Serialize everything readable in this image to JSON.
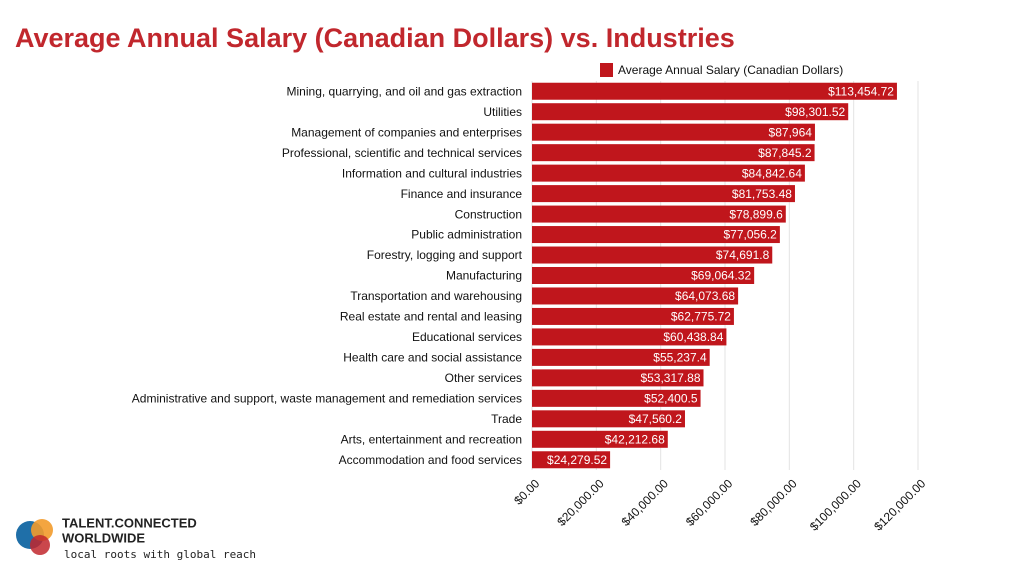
{
  "chart_data": {
    "type": "bar",
    "orientation": "horizontal",
    "title": "Average Annual Salary (Canadian Dollars) vs. Industries",
    "categories": [
      "Mining, quarrying, and oil and gas extraction",
      "Utilities",
      "Management of companies and enterprises",
      "Professional, scientific and technical services",
      "Information and cultural industries",
      "Finance and insurance",
      "Construction",
      "Public administration",
      "Forestry, logging and support",
      "Manufacturing",
      "Transportation and warehousing",
      "Real estate and rental and leasing",
      "Educational services",
      "Health care and social assistance",
      "Other services",
      "Administrative and support, waste management and remediation services",
      "Trade",
      "Arts, entertainment and recreation",
      "Accommodation and food services"
    ],
    "series": [
      {
        "name": "Average Annual Salary (Canadian Dollars)",
        "color": "#c0161c",
        "values": [
          113454.72,
          98301.52,
          87964,
          87845.2,
          84842.64,
          81753.48,
          78899.6,
          77056.2,
          74691.8,
          69064.32,
          64073.68,
          62775.72,
          60438.84,
          55237.4,
          53317.88,
          52400.5,
          47560.2,
          42212.68,
          24279.52
        ],
        "value_labels": [
          "$113,454.72",
          "$98,301.52",
          "$87,964",
          "$87,845.2",
          "$84,842.64",
          "$81,753.48",
          "$78,899.6",
          "$77,056.2",
          "$74,691.8",
          "$69,064.32",
          "$64,073.68",
          "$62,775.72",
          "$60,438.84",
          "$55,237.4",
          "$53,317.88",
          "$52,400.5",
          "$47,560.2",
          "$42,212.68",
          "$24,279.52"
        ]
      }
    ],
    "xlim": [
      0,
      120000
    ],
    "xticks": [
      {
        "value": 0,
        "label": "$0.00"
      },
      {
        "value": 20000,
        "label": "$20,000.00"
      },
      {
        "value": 40000,
        "label": "$40,000.00"
      },
      {
        "value": 60000,
        "label": "$60,000.00"
      },
      {
        "value": 80000,
        "label": "$80,000.00"
      },
      {
        "value": 100000,
        "label": "$100,000.00"
      },
      {
        "value": 120000,
        "label": "$120,000.00"
      }
    ],
    "grid": true,
    "legend": "top"
  },
  "branding": {
    "line1": "TALENT.CONNECTED",
    "line2": "WORLDWIDE",
    "tagline": "local roots with global reach"
  }
}
